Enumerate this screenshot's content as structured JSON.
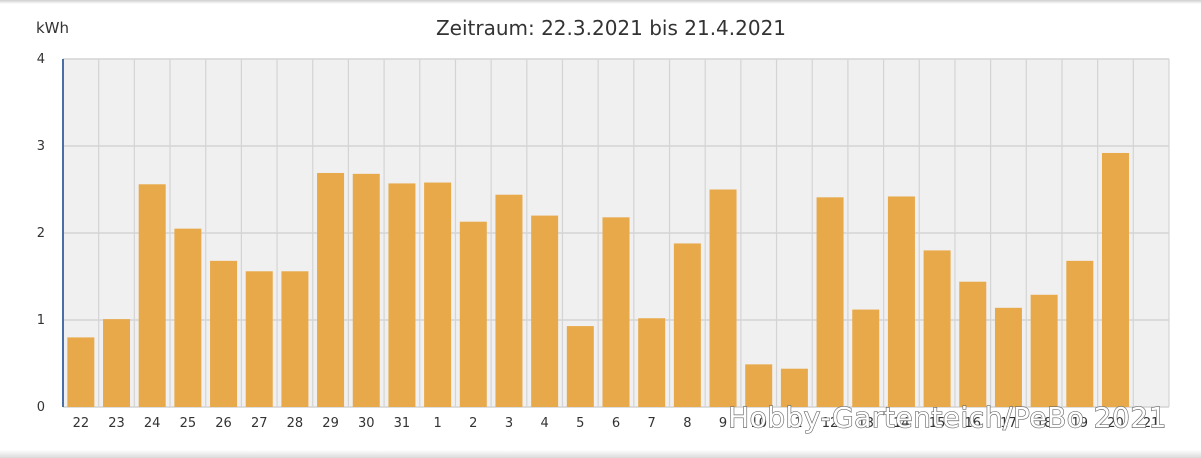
{
  "chart_data": {
    "type": "bar",
    "title": "Zeitraum: 22.3.2021 bis 21.4.2021",
    "ylabel": "kWh",
    "xlabel": "",
    "ylim": [
      0,
      4
    ],
    "yticks": [
      "0",
      "1",
      "2",
      "3",
      "4"
    ],
    "grid": true,
    "legend": "none",
    "categories": [
      "22",
      "23",
      "24",
      "25",
      "26",
      "27",
      "28",
      "29",
      "30",
      "31",
      "1",
      "2",
      "3",
      "4",
      "5",
      "6",
      "7",
      "8",
      "9",
      "10",
      "11",
      "12",
      "13",
      "14",
      "15",
      "16",
      "17",
      "18",
      "19",
      "20",
      "21"
    ],
    "values": [
      0.8,
      1.01,
      2.56,
      2.05,
      1.68,
      1.56,
      1.56,
      2.69,
      2.68,
      2.57,
      2.58,
      2.13,
      2.44,
      2.2,
      0.93,
      2.18,
      1.02,
      1.88,
      2.5,
      0.49,
      0.44,
      2.41,
      1.12,
      2.42,
      1.8,
      1.44,
      1.14,
      1.29,
      1.68,
      2.92,
      0
    ],
    "bar_color": "#E8A94A",
    "plot_background": "#F0F0F0",
    "gridline_color": "#D4D4D4",
    "axis_color": "#4A6FA5"
  },
  "watermark": "Hobby-Gartenteich/PeBo 2021"
}
